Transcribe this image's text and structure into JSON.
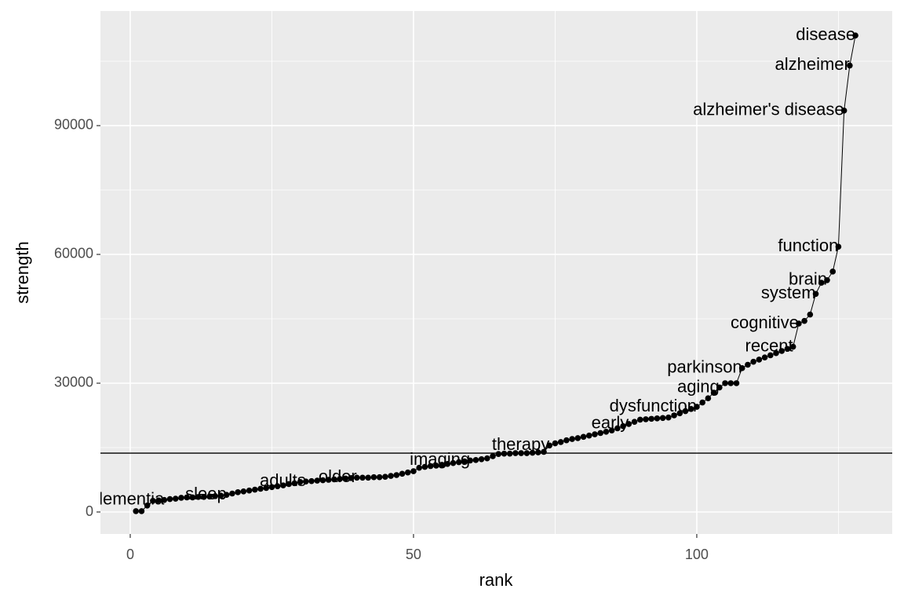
{
  "chart_data": {
    "type": "line",
    "x_label": "rank",
    "y_label": "strength",
    "xlim": [
      -5.26,
      134.5
    ],
    "ylim": [
      -5120,
      116700
    ],
    "xticks": [
      0,
      50,
      100
    ],
    "yticks": [
      0,
      30000,
      60000,
      90000
    ],
    "xminor": [
      25,
      75,
      125
    ],
    "yminor": [
      15000,
      45000,
      75000,
      105000
    ],
    "grid": true,
    "hline": 13700,
    "series": [
      {
        "color": "#000000",
        "x": [
          1,
          2,
          3,
          4,
          5,
          6,
          7,
          8,
          9,
          10,
          11,
          12,
          13,
          14,
          15,
          16,
          17,
          18,
          19,
          20,
          21,
          22,
          23,
          24,
          25,
          26,
          27,
          28,
          29,
          30,
          31,
          32,
          33,
          34,
          35,
          36,
          37,
          38,
          39,
          40,
          41,
          42,
          43,
          44,
          45,
          46,
          47,
          48,
          49,
          50,
          51,
          52,
          53,
          54,
          55,
          56,
          57,
          58,
          59,
          60,
          61,
          62,
          63,
          64,
          65,
          66,
          67,
          68,
          69,
          70,
          71,
          72,
          73,
          74,
          75,
          76,
          77,
          78,
          79,
          80,
          81,
          82,
          83,
          84,
          85,
          86,
          87,
          88,
          89,
          90,
          91,
          92,
          93,
          94,
          95,
          96,
          97,
          98,
          99,
          100,
          101,
          102,
          103,
          104,
          105,
          106,
          107,
          108,
          109,
          110,
          111,
          112,
          113,
          114,
          115,
          116,
          117,
          118,
          119,
          120,
          121,
          122,
          123,
          124,
          125,
          126,
          127,
          128
        ],
        "values": [
          200,
          200,
          1500,
          2600,
          2700,
          2800,
          3000,
          3100,
          3300,
          3400,
          3400,
          3500,
          3500,
          3600,
          3700,
          3800,
          4000,
          4300,
          4600,
          4800,
          5000,
          5200,
          5400,
          5600,
          5800,
          6000,
          6200,
          6500,
          6700,
          7000,
          7100,
          7200,
          7300,
          7400,
          7500,
          7600,
          7700,
          7800,
          7900,
          8000,
          8000,
          8000,
          8100,
          8100,
          8200,
          8400,
          8600,
          8900,
          9200,
          9500,
          10300,
          10500,
          10700,
          10800,
          11000,
          11200,
          11400,
          11600,
          11800,
          12000,
          12100,
          12300,
          12500,
          13000,
          13500,
          13600,
          13600,
          13700,
          13700,
          13700,
          13800,
          13900,
          14000,
          15500,
          16000,
          16300,
          16700,
          17000,
          17200,
          17500,
          17800,
          18100,
          18400,
          18700,
          19000,
          19500,
          20000,
          20500,
          21000,
          21500,
          21600,
          21700,
          21800,
          21900,
          22000,
          22500,
          23000,
          23500,
          24000,
          24500,
          25500,
          26500,
          27800,
          29000,
          30000,
          30000,
          30000,
          33500,
          34300,
          35000,
          35500,
          36000,
          36500,
          37000,
          37500,
          38000,
          38500,
          43900,
          44500,
          46000,
          50800,
          53400,
          54000,
          56000,
          61800,
          93500,
          104000,
          111000
        ],
        "point_labels": [
          null,
          null,
          null,
          null,
          null,
          "dementia",
          null,
          null,
          null,
          null,
          null,
          null,
          null,
          null,
          null,
          null,
          "sleep",
          null,
          null,
          null,
          null,
          null,
          null,
          null,
          null,
          null,
          null,
          null,
          null,
          null,
          "adults",
          null,
          null,
          null,
          null,
          null,
          null,
          null,
          null,
          "older",
          null,
          null,
          null,
          null,
          null,
          null,
          null,
          null,
          null,
          null,
          null,
          null,
          null,
          null,
          null,
          null,
          null,
          null,
          null,
          "imaging",
          null,
          null,
          null,
          null,
          null,
          null,
          null,
          null,
          null,
          null,
          null,
          null,
          null,
          "therapy",
          null,
          null,
          null,
          null,
          null,
          null,
          null,
          null,
          null,
          null,
          null,
          null,
          null,
          "early",
          null,
          null,
          null,
          null,
          null,
          null,
          null,
          null,
          null,
          null,
          null,
          "dysfunction",
          null,
          null,
          null,
          "aging",
          null,
          null,
          null,
          "parkinson",
          null,
          null,
          null,
          null,
          null,
          null,
          null,
          null,
          "recent",
          "cognitive",
          null,
          null,
          "system",
          null,
          "brain",
          null,
          "function",
          "alzheimer's disease",
          "alzheimer",
          "disease"
        ]
      }
    ]
  }
}
